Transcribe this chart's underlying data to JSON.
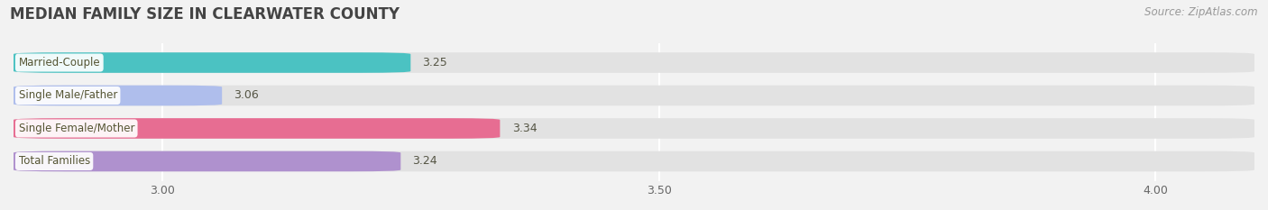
{
  "title": "MEDIAN FAMILY SIZE IN CLEARWATER COUNTY",
  "source": "Source: ZipAtlas.com",
  "categories": [
    "Married-Couple",
    "Single Male/Father",
    "Single Female/Mother",
    "Total Families"
  ],
  "values": [
    3.25,
    3.06,
    3.34,
    3.24
  ],
  "bar_colors": [
    "#3bbfbf",
    "#aabbee",
    "#e8608a",
    "#aa88cc"
  ],
  "xlim": [
    2.85,
    4.1
  ],
  "xticks": [
    3.0,
    3.5,
    4.0
  ],
  "xtick_labels": [
    "3.00",
    "3.50",
    "4.00"
  ],
  "title_fontsize": 12,
  "source_fontsize": 8.5,
  "label_fontsize": 8.5,
  "value_fontsize": 9,
  "tick_fontsize": 9,
  "background_color": "#f2f2f2",
  "bar_background_color": "#e2e2e2",
  "bar_height": 0.62
}
